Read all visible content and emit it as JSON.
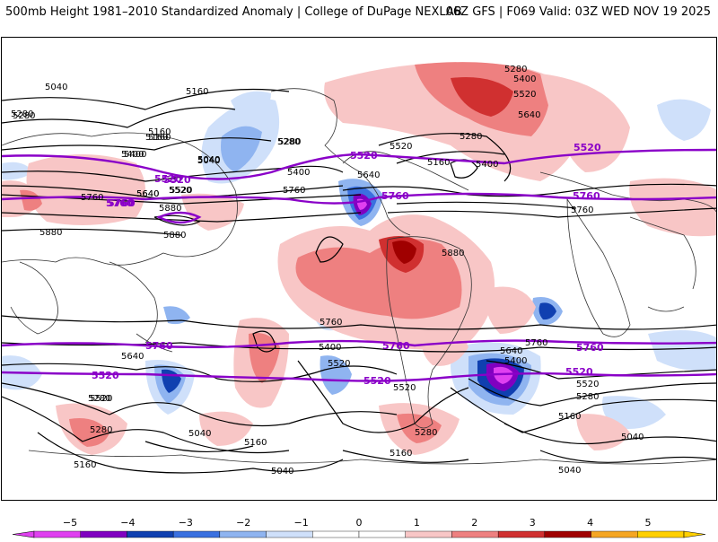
{
  "header": {
    "title": "500mb Height 1981–2010 Standardized Anomaly | College of DuPage NEXLAB",
    "run_info": "06Z GFS | F069 Valid: 03Z WED NOV 19 2025"
  },
  "colorbar": {
    "ticks": [
      "−5",
      "−4",
      "−3",
      "−2",
      "−1",
      "0",
      "1",
      "2",
      "3",
      "4",
      "5"
    ],
    "colors": [
      "#e040f0",
      "#8000c0",
      "#1040b0",
      "#3a70e0",
      "#8fb4f0",
      "#cfe0fa",
      "#ffffff",
      "#ffffff",
      "#f8c6c6",
      "#ee8080",
      "#d03030",
      "#a00000",
      "#f5a623",
      "#ffd000"
    ]
  },
  "contour_labels": {
    "black": [
      "5040",
      "5160",
      "5280",
      "5280",
      "5400",
      "5520",
      "5640",
      "5160",
      "5040",
      "5400",
      "5280",
      "5520",
      "5640",
      "5760",
      "5880",
      "5880",
      "5160",
      "5280",
      "5400",
      "5520",
      "5640",
      "5400",
      "5160",
      "5280",
      "5040",
      "5160",
      "5040",
      "5280",
      "5400",
      "5520",
      "5640",
      "5760",
      "5880",
      "5880",
      "5760",
      "5640",
      "5400",
      "5520",
      "5280",
      "5040",
      "5160",
      "5280",
      "5040",
      "5160",
      "5040",
      "5760",
      "5640",
      "5400",
      "5520",
      "5160",
      "5280",
      "5040",
      "5760",
      "5520",
      "5520",
      "5280",
      "5160"
    ],
    "purple": [
      "5520",
      "5760",
      "5520",
      "5760",
      "5520",
      "5760",
      "5520",
      "5760",
      "5760",
      "5760",
      "5520",
      "5520",
      "5520",
      "5760"
    ]
  }
}
